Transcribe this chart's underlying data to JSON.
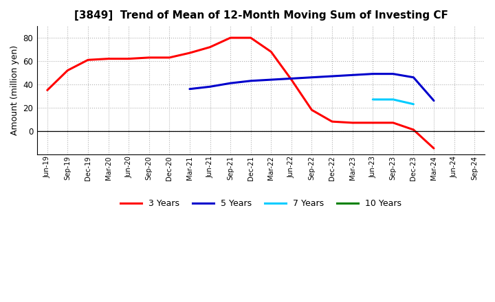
{
  "title": "[3849]  Trend of Mean of 12-Month Moving Sum of Investing CF",
  "ylabel": "Amount (million yen)",
  "background_color": "#ffffff",
  "grid_color": "#b0b0b0",
  "ylim": [
    -20,
    90
  ],
  "yticks": [
    0,
    20,
    40,
    60,
    80
  ],
  "x_labels": [
    "Jun-19",
    "Sep-19",
    "Dec-19",
    "Mar-20",
    "Jun-20",
    "Sep-20",
    "Dec-20",
    "Mar-21",
    "Jun-21",
    "Sep-21",
    "Dec-21",
    "Mar-22",
    "Jun-22",
    "Sep-22",
    "Dec-22",
    "Mar-23",
    "Jun-23",
    "Sep-23",
    "Dec-23",
    "Mar-24",
    "Jun-24",
    "Sep-24"
  ],
  "series": {
    "3 Years": {
      "color": "#ff0000",
      "x": [
        0,
        1,
        2,
        3,
        4,
        5,
        6,
        7,
        8,
        9,
        10,
        11,
        12,
        13,
        14,
        15,
        16,
        17,
        18,
        19
      ],
      "y": [
        35,
        52,
        61,
        62,
        62,
        63,
        63,
        67,
        72,
        80,
        80,
        68,
        44,
        18,
        8,
        7,
        7,
        7,
        1,
        -15
      ]
    },
    "5 Years": {
      "color": "#0000cc",
      "x": [
        7,
        8,
        9,
        10,
        11,
        12,
        13,
        14,
        15,
        16,
        17,
        18,
        19
      ],
      "y": [
        36,
        38,
        41,
        43,
        44,
        45,
        46,
        47,
        48,
        49,
        49,
        46,
        26
      ]
    },
    "7 Years": {
      "color": "#00ccff",
      "x": [
        16,
        17,
        18
      ],
      "y": [
        27,
        27,
        23
      ]
    },
    "10 Years": {
      "color": "#008000",
      "x": [],
      "y": []
    }
  },
  "legend_labels": [
    "3 Years",
    "5 Years",
    "7 Years",
    "10 Years"
  ],
  "legend_colors": [
    "#ff0000",
    "#0000cc",
    "#00ccff",
    "#008000"
  ]
}
